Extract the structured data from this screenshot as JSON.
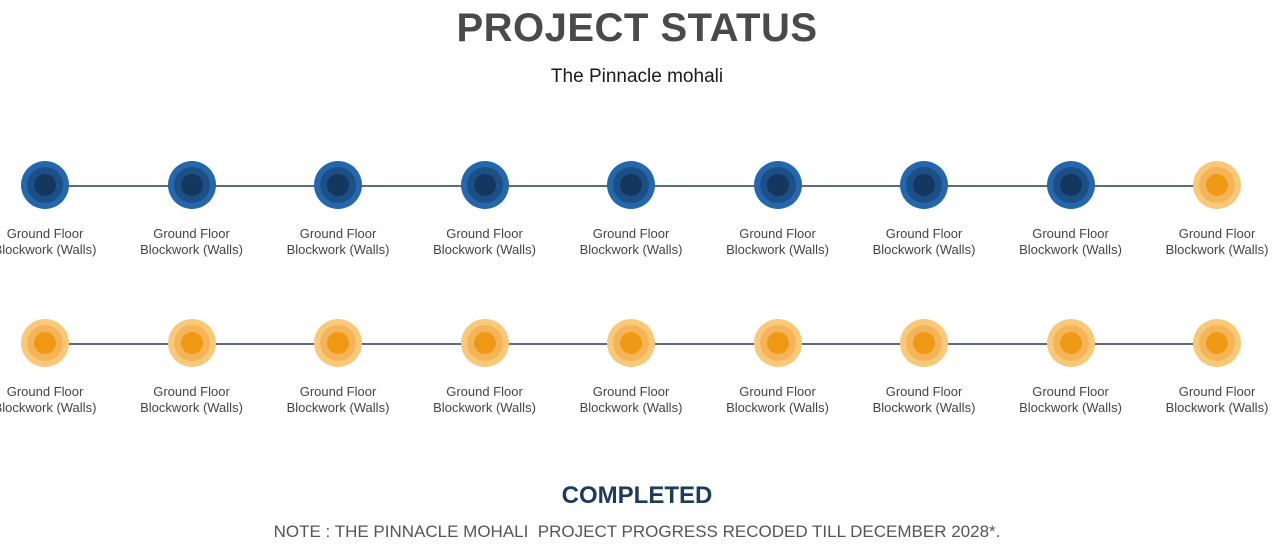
{
  "header": {
    "title": "PROJECT STATUS",
    "subtitle": "The Pinnacle mohali"
  },
  "colors": {
    "done_outer": "#2567ac",
    "done_core": "#14375f",
    "pending_outer": "#f9c97a",
    "pending_core": "#ee9814",
    "track": "#5a6c80"
  },
  "rows": [
    {
      "steps": [
        {
          "line1": "Ground Floor",
          "line2": "Blockwork (Walls)",
          "status": "done"
        },
        {
          "line1": "Ground Floor",
          "line2": "Blockwork (Walls)",
          "status": "done"
        },
        {
          "line1": "Ground Floor",
          "line2": "Blockwork (Walls)",
          "status": "done"
        },
        {
          "line1": "Ground Floor",
          "line2": "Blockwork (Walls)",
          "status": "done"
        },
        {
          "line1": "Ground Floor",
          "line2": "Blockwork (Walls)",
          "status": "done"
        },
        {
          "line1": "Ground Floor",
          "line2": "Blockwork (Walls)",
          "status": "done"
        },
        {
          "line1": "Ground Floor",
          "line2": "Blockwork (Walls)",
          "status": "done"
        },
        {
          "line1": "Ground Floor",
          "line2": "Blockwork (Walls)",
          "status": "done"
        },
        {
          "line1": "Ground Floor",
          "line2": "Blockwork (Walls)",
          "status": "pending"
        }
      ]
    },
    {
      "steps": [
        {
          "line1": "Ground Floor",
          "line2": "Blockwork (Walls)",
          "status": "pending"
        },
        {
          "line1": "Ground Floor",
          "line2": "Blockwork (Walls)",
          "status": "pending"
        },
        {
          "line1": "Ground Floor",
          "line2": "Blockwork (Walls)",
          "status": "pending"
        },
        {
          "line1": "Ground Floor",
          "line2": "Blockwork (Walls)",
          "status": "pending"
        },
        {
          "line1": "Ground Floor",
          "line2": "Blockwork (Walls)",
          "status": "pending"
        },
        {
          "line1": "Ground Floor",
          "line2": "Blockwork (Walls)",
          "status": "pending"
        },
        {
          "line1": "Ground Floor",
          "line2": "Blockwork (Walls)",
          "status": "pending"
        },
        {
          "line1": "Ground Floor",
          "line2": "Blockwork (Walls)",
          "status": "pending"
        },
        {
          "line1": "Ground Floor",
          "line2": "Blockwork (Walls)",
          "status": "pending"
        }
      ]
    }
  ],
  "footer": {
    "status": "COMPLETED",
    "note": "NOTE : THE PINNACLE MOHALI  PROJECT PROGRESS RECODED TILL DECEMBER 2028*."
  }
}
